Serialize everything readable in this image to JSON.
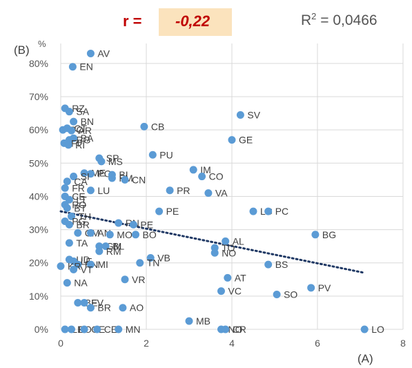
{
  "header": {
    "r_label": "r =",
    "r_value": "-0,22",
    "r2_prefix": "R",
    "r2_sup": "2",
    "r2_suffix": " = 0,0466"
  },
  "colors": {
    "points": "#5b9bd5",
    "trend": "#1f3864",
    "grid": "#d9d9d9",
    "text": "#555555",
    "accent": "#c00000",
    "highlight": "#fbe3bd"
  },
  "chart_data": {
    "type": "scatter",
    "xlabel": "(A)",
    "ylabel": "(B)",
    "yunit": "%",
    "xlim": [
      0,
      8
    ],
    "ylim": [
      0,
      0.86
    ],
    "xticks": [
      "0",
      "2",
      "4",
      "6",
      "8"
    ],
    "yticks": [
      "0%",
      "10%",
      "20%",
      "30%",
      "40%",
      "50%",
      "60%",
      "70%",
      "80%"
    ],
    "grid": true,
    "trendline": {
      "style": "dotted",
      "x": [
        0,
        7.1
      ],
      "y": [
        0.355,
        0.17
      ]
    },
    "points": [
      {
        "x": 0.7,
        "y": 0.83,
        "label": "AV"
      },
      {
        "x": 0.28,
        "y": 0.79,
        "label": "EN"
      },
      {
        "x": 0.1,
        "y": 0.665,
        "label": "RZ"
      },
      {
        "x": 0.2,
        "y": 0.655,
        "label": "SA"
      },
      {
        "x": 0.3,
        "y": 0.625,
        "label": "BN"
      },
      {
        "x": 0.05,
        "y": 0.6,
        "label": "PO"
      },
      {
        "x": 0.15,
        "y": 0.605,
        "label": "CT"
      },
      {
        "x": 0.25,
        "y": 0.598,
        "label": "AR"
      },
      {
        "x": 0.2,
        "y": 0.57,
        "label": "RG"
      },
      {
        "x": 0.3,
        "y": 0.575,
        "label": "BA"
      },
      {
        "x": 0.08,
        "y": 0.56,
        "label": "FI"
      },
      {
        "x": 0.18,
        "y": 0.555,
        "label": "RI"
      },
      {
        "x": 1.95,
        "y": 0.61,
        "label": "CB"
      },
      {
        "x": 4.2,
        "y": 0.645,
        "label": "SV"
      },
      {
        "x": 4.0,
        "y": 0.57,
        "label": "GE"
      },
      {
        "x": 2.15,
        "y": 0.525,
        "label": "PU"
      },
      {
        "x": 0.9,
        "y": 0.515,
        "label": "SP"
      },
      {
        "x": 0.95,
        "y": 0.505,
        "label": "MS"
      },
      {
        "x": 3.1,
        "y": 0.48,
        "label": "IM"
      },
      {
        "x": 3.3,
        "y": 0.46,
        "label": "CO"
      },
      {
        "x": 0.55,
        "y": 0.47,
        "label": "ME"
      },
      {
        "x": 0.7,
        "y": 0.468,
        "label": "PO"
      },
      {
        "x": 1.2,
        "y": 0.465,
        "label": "BI"
      },
      {
        "x": 1.2,
        "y": 0.455,
        "label": "FM"
      },
      {
        "x": 0.3,
        "y": 0.46,
        "label": "SI"
      },
      {
        "x": 0.15,
        "y": 0.445,
        "label": "CA"
      },
      {
        "x": 1.5,
        "y": 0.45,
        "label": "CN"
      },
      {
        "x": 0.1,
        "y": 0.425,
        "label": "FR"
      },
      {
        "x": 0.7,
        "y": 0.418,
        "label": "LU"
      },
      {
        "x": 2.55,
        "y": 0.418,
        "label": "PR"
      },
      {
        "x": 3.45,
        "y": 0.41,
        "label": "VA"
      },
      {
        "x": 0.1,
        "y": 0.4,
        "label": "CE"
      },
      {
        "x": 0.2,
        "y": 0.39,
        "label": "LT"
      },
      {
        "x": 0.1,
        "y": 0.375,
        "label": "RO"
      },
      {
        "x": 0.15,
        "y": 0.365,
        "label": "BT"
      },
      {
        "x": 0.25,
        "y": 0.34,
        "label": "TH"
      },
      {
        "x": 2.3,
        "y": 0.355,
        "label": "PE"
      },
      {
        "x": 4.5,
        "y": 0.355,
        "label": "LC"
      },
      {
        "x": 4.85,
        "y": 0.355,
        "label": "PC"
      },
      {
        "x": 0.1,
        "y": 0.325,
        "label": "PG"
      },
      {
        "x": 0.2,
        "y": 0.315,
        "label": "BR"
      },
      {
        "x": 1.35,
        "y": 0.32,
        "label": "RN"
      },
      {
        "x": 1.7,
        "y": 0.315,
        "label": "PE"
      },
      {
        "x": 0.4,
        "y": 0.29,
        "label": "CM"
      },
      {
        "x": 0.7,
        "y": 0.29,
        "label": "AN"
      },
      {
        "x": 1.15,
        "y": 0.285,
        "label": "MO"
      },
      {
        "x": 1.75,
        "y": 0.285,
        "label": "BO"
      },
      {
        "x": 5.95,
        "y": 0.285,
        "label": "BG"
      },
      {
        "x": 0.2,
        "y": 0.26,
        "label": "TA"
      },
      {
        "x": 0.9,
        "y": 0.25,
        "label": "GM"
      },
      {
        "x": 1.05,
        "y": 0.25,
        "label": "BL"
      },
      {
        "x": 0.9,
        "y": 0.235,
        "label": "RM"
      },
      {
        "x": 3.85,
        "y": 0.265,
        "label": "AL"
      },
      {
        "x": 3.6,
        "y": 0.245,
        "label": "TO"
      },
      {
        "x": 3.6,
        "y": 0.23,
        "label": "NO"
      },
      {
        "x": 2.1,
        "y": 0.215,
        "label": "VB"
      },
      {
        "x": 1.85,
        "y": 0.2,
        "label": "TN"
      },
      {
        "x": 0.2,
        "y": 0.21,
        "label": "UD"
      },
      {
        "x": 0.3,
        "y": 0.205,
        "label": "LE"
      },
      {
        "x": 0.4,
        "y": 0.195,
        "label": "PN"
      },
      {
        "x": 0.7,
        "y": 0.195,
        "label": "MI"
      },
      {
        "x": 0.0,
        "y": 0.19,
        "label": "KR"
      },
      {
        "x": 0.3,
        "y": 0.18,
        "label": "VT"
      },
      {
        "x": 4.85,
        "y": 0.195,
        "label": "BS"
      },
      {
        "x": 0.15,
        "y": 0.14,
        "label": "NA"
      },
      {
        "x": 1.5,
        "y": 0.15,
        "label": "VR"
      },
      {
        "x": 3.9,
        "y": 0.155,
        "label": "AT"
      },
      {
        "x": 3.75,
        "y": 0.115,
        "label": "VC"
      },
      {
        "x": 5.05,
        "y": 0.105,
        "label": "SO"
      },
      {
        "x": 5.85,
        "y": 0.125,
        "label": "PV"
      },
      {
        "x": 0.4,
        "y": 0.08,
        "label": "BE"
      },
      {
        "x": 0.55,
        "y": 0.08,
        "label": "FV"
      },
      {
        "x": 0.7,
        "y": 0.065,
        "label": "BR"
      },
      {
        "x": 1.45,
        "y": 0.065,
        "label": "AO"
      },
      {
        "x": 3.0,
        "y": 0.025,
        "label": "MB"
      },
      {
        "x": 0.1,
        "y": 0.0,
        "label": "LE"
      },
      {
        "x": 0.25,
        "y": 0.0,
        "label": "FO"
      },
      {
        "x": 0.55,
        "y": 0.0,
        "label": "GE"
      },
      {
        "x": 0.85,
        "y": 0.0,
        "label": "CE"
      },
      {
        "x": 1.35,
        "y": 0.0,
        "label": "MN"
      },
      {
        "x": 3.75,
        "y": 0.0,
        "label": "NO"
      },
      {
        "x": 3.85,
        "y": 0.0,
        "label": "CR"
      },
      {
        "x": 7.1,
        "y": 0.0,
        "label": "LO"
      }
    ]
  }
}
